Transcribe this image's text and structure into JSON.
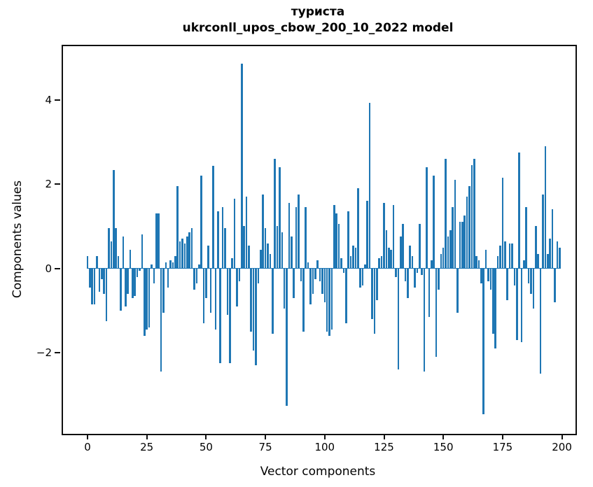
{
  "title": {
    "line1": "туриста",
    "line2": "ukrconll_upos_cbow_200_10_2022 model"
  },
  "axes": {
    "xlabel": "Vector components",
    "ylabel": "Components values",
    "x_ticks": [
      0,
      25,
      50,
      75,
      100,
      125,
      150,
      175,
      200
    ],
    "y_ticks": [
      4,
      2,
      0,
      -2
    ]
  },
  "colors": {
    "bar": "#1f77b4",
    "axis": "#0f0f0f",
    "background": "#ffffff"
  },
  "chart_data": {
    "type": "bar",
    "title": "туриста — ukrconll_upos_cbow_200_10_2022 model",
    "xlabel": "Vector components",
    "ylabel": "Components values",
    "n_components": 200,
    "xlim": [
      -10.3,
      210.3
    ],
    "ylim": [
      -3.92,
      5.27
    ],
    "grid": false,
    "values": [
      0.3,
      -0.45,
      -0.85,
      -0.85,
      0.3,
      -0.55,
      -0.25,
      -0.6,
      -1.25,
      0.95,
      0.65,
      2.33,
      0.95,
      0.3,
      -1.0,
      0.75,
      -0.9,
      -0.6,
      0.45,
      -0.7,
      -0.65,
      -0.2,
      -0.05,
      0.8,
      -1.6,
      -1.45,
      -1.4,
      0.1,
      -0.35,
      1.3,
      1.3,
      -2.45,
      -1.05,
      0.15,
      -0.45,
      0.2,
      0.15,
      0.3,
      1.95,
      0.65,
      0.7,
      0.6,
      0.75,
      0.85,
      0.95,
      -0.5,
      -0.35,
      0.1,
      2.2,
      -1.3,
      -0.7,
      0.55,
      -1.05,
      2.43,
      -1.45,
      1.35,
      -2.25,
      1.45,
      0.95,
      -1.1,
      -2.25,
      0.25,
      1.65,
      -0.9,
      -0.3,
      4.85,
      1.0,
      1.7,
      0.55,
      -1.5,
      -1.95,
      -2.3,
      -0.35,
      0.45,
      1.75,
      0.95,
      0.6,
      0.35,
      -1.55,
      2.6,
      1.0,
      2.4,
      0.85,
      -0.95,
      -3.26,
      1.55,
      0.75,
      -0.7,
      1.45,
      1.75,
      -0.3,
      -1.5,
      1.45,
      0.15,
      -0.85,
      -0.6,
      -0.25,
      0.2,
      -0.3,
      -0.6,
      -0.8,
      -1.5,
      -1.6,
      -1.45,
      1.5,
      1.3,
      1.05,
      0.25,
      -0.1,
      -1.3,
      1.35,
      0.3,
      0.55,
      0.5,
      1.9,
      -0.45,
      -0.4,
      0.1,
      1.6,
      3.93,
      -1.2,
      -1.55,
      -0.75,
      0.25,
      0.3,
      1.55,
      0.9,
      0.5,
      0.45,
      1.5,
      -0.2,
      -2.4,
      0.75,
      1.05,
      -0.3,
      -0.7,
      0.55,
      0.3,
      -0.45,
      -0.1,
      1.05,
      -0.15,
      -2.45,
      2.4,
      -1.15,
      0.2,
      2.2,
      -2.1,
      -0.5,
      0.35,
      0.5,
      2.6,
      0.75,
      0.9,
      1.45,
      2.1,
      -1.05,
      1.1,
      1.1,
      1.25,
      1.7,
      1.95,
      2.45,
      2.6,
      0.3,
      0.2,
      -0.35,
      -3.45,
      0.45,
      -0.3,
      -0.5,
      -1.55,
      -1.9,
      0.3,
      0.55,
      2.15,
      0.65,
      -0.75,
      0.6,
      0.6,
      -0.4,
      -1.7,
      2.75,
      -1.75,
      0.2,
      1.45,
      -0.35,
      -0.6,
      -0.95,
      1.0,
      0.35,
      -2.5,
      1.75,
      2.9,
      0.35,
      0.7,
      1.4,
      -0.8,
      0.65,
      0.5
    ]
  }
}
